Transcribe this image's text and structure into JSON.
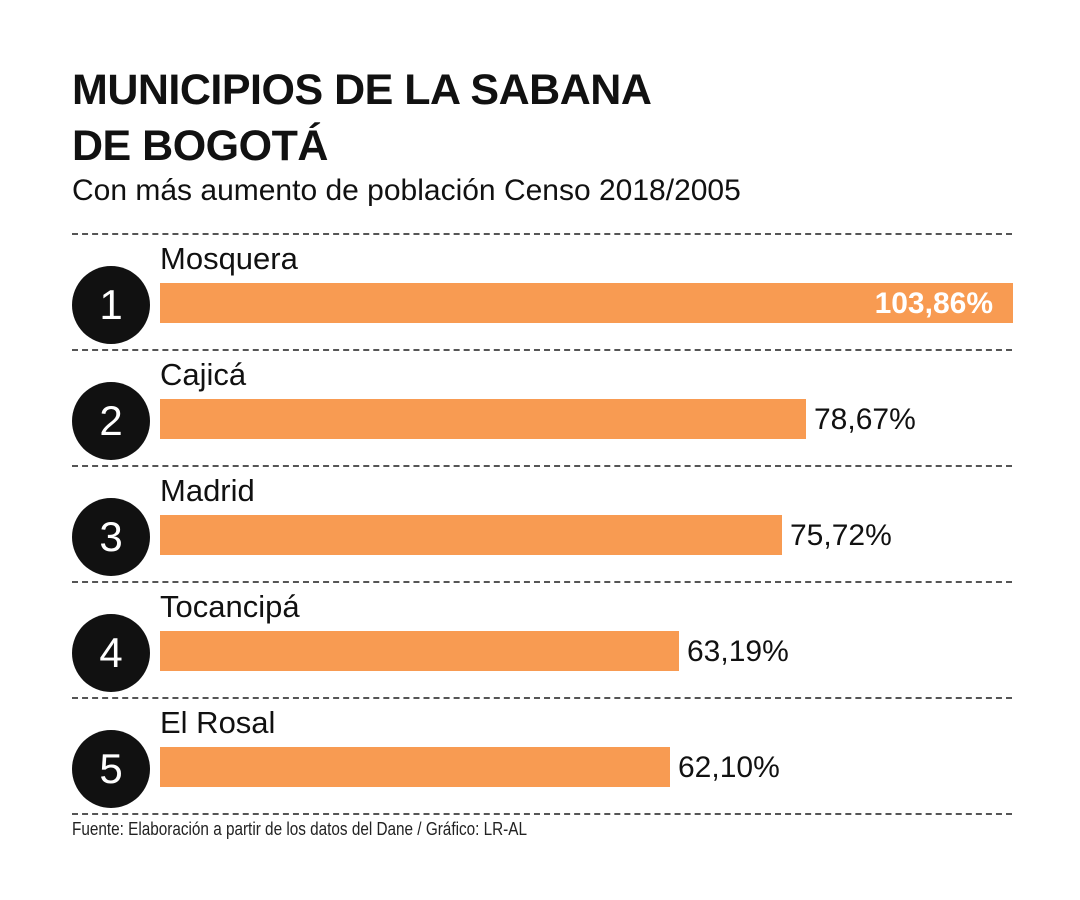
{
  "title_line1": "MUNICIPIOS DE LA SABANA",
  "title_line2": "DE BOGOTÁ",
  "subtitle": "Con más aumento de población Censo 2018/2005",
  "source": "Fuente: Elaboración a partir de los datos del Dane / Gráfico: LR-AL",
  "colors": {
    "bar": "#f89b52",
    "badge": "#111111"
  },
  "chart_data": {
    "type": "bar",
    "orientation": "horizontal",
    "title": "MUNICIPIOS DE LA SABANA DE BOGOTÁ",
    "subtitle": "Con más aumento de población Censo 2018/2005",
    "ranks": [
      "1",
      "2",
      "3",
      "4",
      "5"
    ],
    "categories": [
      "Mosquera",
      "Cajicá",
      "Madrid",
      "Tocancipá",
      "El Rosal"
    ],
    "values": [
      103.86,
      78.67,
      75.72,
      63.19,
      62.1
    ],
    "value_labels": [
      "103,86%",
      "78,67%",
      "75,72%",
      "63,19%",
      "62,10%"
    ],
    "xlim": [
      0,
      103.86
    ]
  }
}
